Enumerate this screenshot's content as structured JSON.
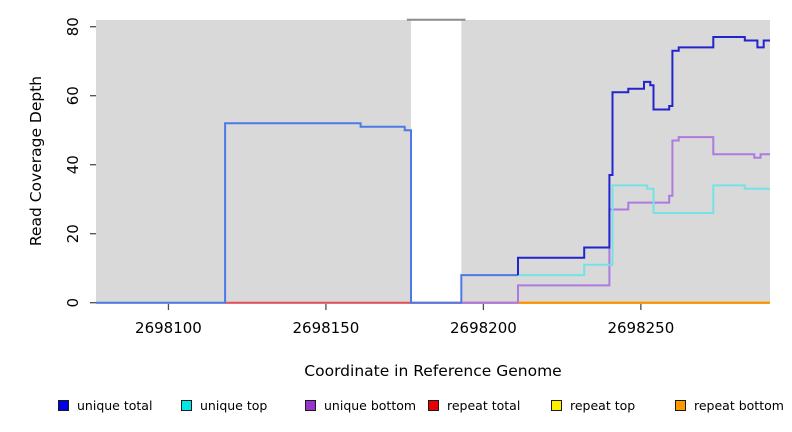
{
  "figure": {
    "x_axis_label": "Coordinate in Reference Genome",
    "y_axis_label": "Read Coverage Depth"
  },
  "legend": {
    "items": [
      {
        "label": "unique total",
        "color": "#0000e6"
      },
      {
        "label": "unique top",
        "color": "#00e6e6"
      },
      {
        "label": "unique bottom",
        "color": "#9933cc"
      },
      {
        "label": "repeat total",
        "color": "#e60000"
      },
      {
        "label": "repeat top",
        "color": "#ffee00"
      },
      {
        "label": "repeat bottom",
        "color": "#ff9900"
      }
    ]
  },
  "chart_data": {
    "type": "line",
    "title": "",
    "xlabel": "Coordinate in Reference Genome",
    "ylabel": "Read Coverage Depth",
    "xlim": [
      2698077,
      2698291
    ],
    "ylim": [
      0,
      80
    ],
    "x_ticks": [
      2698100,
      2698150,
      2698200,
      2698250
    ],
    "y_ticks": [
      0,
      20,
      40,
      60,
      80
    ],
    "grid": false,
    "legend_position": "bottom",
    "plot_background": "#d9d9d9",
    "masked_region": {
      "x_start": 2698177,
      "x_end": 2698193
    },
    "masked_cap_line": {
      "name": "masked-region-cap",
      "color": "#8c8c8c",
      "points": [
        [
          2698176,
          82
        ],
        [
          2698194,
          82
        ]
      ]
    },
    "series": [
      {
        "name": "repeat total",
        "color": "#e6505e",
        "points": [
          [
            2698118,
            0
          ],
          [
            2698291,
            0
          ]
        ]
      },
      {
        "name": "repeat top",
        "color": "#ffe600",
        "points": [
          [
            2698211,
            0
          ],
          [
            2698291,
            0
          ]
        ]
      },
      {
        "name": "repeat bottom",
        "color": "#ff9100",
        "points": [
          [
            2698211,
            0
          ],
          [
            2698291,
            0
          ]
        ]
      },
      {
        "name": "unique bottom",
        "color": "#ad7ae0",
        "points": [
          [
            2698193,
            0
          ],
          [
            2698211,
            0
          ],
          [
            2698211,
            5
          ],
          [
            2698240,
            5
          ],
          [
            2698240,
            27
          ],
          [
            2698246,
            27
          ],
          [
            2698246,
            29
          ],
          [
            2698259,
            29
          ],
          [
            2698259,
            31
          ],
          [
            2698260,
            31
          ],
          [
            2698260,
            47
          ],
          [
            2698262,
            47
          ],
          [
            2698262,
            48
          ],
          [
            2698273,
            48
          ],
          [
            2698273,
            43
          ],
          [
            2698286,
            43
          ],
          [
            2698286,
            42
          ],
          [
            2698288,
            42
          ],
          [
            2698288,
            43
          ],
          [
            2698291,
            43
          ]
        ]
      },
      {
        "name": "unique top",
        "color": "#74e3e8",
        "points": [
          [
            2698211,
            8
          ],
          [
            2698232,
            8
          ],
          [
            2698232,
            11
          ],
          [
            2698241,
            11
          ],
          [
            2698241,
            34
          ],
          [
            2698252,
            34
          ],
          [
            2698252,
            33
          ],
          [
            2698254,
            33
          ],
          [
            2698254,
            26
          ],
          [
            2698273,
            26
          ],
          [
            2698273,
            34
          ],
          [
            2698283,
            34
          ],
          [
            2698283,
            33
          ],
          [
            2698291,
            33
          ]
        ]
      },
      {
        "name": "unique total (pre-gap, coincides with unique top)",
        "color": "#4d79e6",
        "points": [
          [
            2698077,
            0
          ],
          [
            2698118,
            0
          ],
          [
            2698118,
            52
          ],
          [
            2698161,
            52
          ],
          [
            2698161,
            51
          ],
          [
            2698175,
            51
          ],
          [
            2698175,
            50
          ],
          [
            2698177,
            50
          ],
          [
            2698177,
            0
          ],
          [
            2698193,
            0
          ],
          [
            2698193,
            8
          ],
          [
            2698211,
            8
          ]
        ]
      },
      {
        "name": "unique total",
        "color": "#2424cc",
        "points": [
          [
            2698211,
            8
          ],
          [
            2698211,
            13
          ],
          [
            2698232,
            13
          ],
          [
            2698232,
            16
          ],
          [
            2698240,
            16
          ],
          [
            2698240,
            37
          ],
          [
            2698241,
            37
          ],
          [
            2698241,
            61
          ],
          [
            2698246,
            61
          ],
          [
            2698246,
            62
          ],
          [
            2698251,
            62
          ],
          [
            2698251,
            64
          ],
          [
            2698253,
            64
          ],
          [
            2698253,
            63
          ],
          [
            2698254,
            63
          ],
          [
            2698254,
            56
          ],
          [
            2698259,
            56
          ],
          [
            2698259,
            57
          ],
          [
            2698260,
            57
          ],
          [
            2698260,
            73
          ],
          [
            2698262,
            73
          ],
          [
            2698262,
            74
          ],
          [
            2698273,
            74
          ],
          [
            2698273,
            77
          ],
          [
            2698283,
            77
          ],
          [
            2698283,
            76
          ],
          [
            2698287,
            76
          ],
          [
            2698287,
            74
          ],
          [
            2698289,
            74
          ],
          [
            2698289,
            76
          ],
          [
            2698291,
            76
          ]
        ]
      }
    ]
  }
}
